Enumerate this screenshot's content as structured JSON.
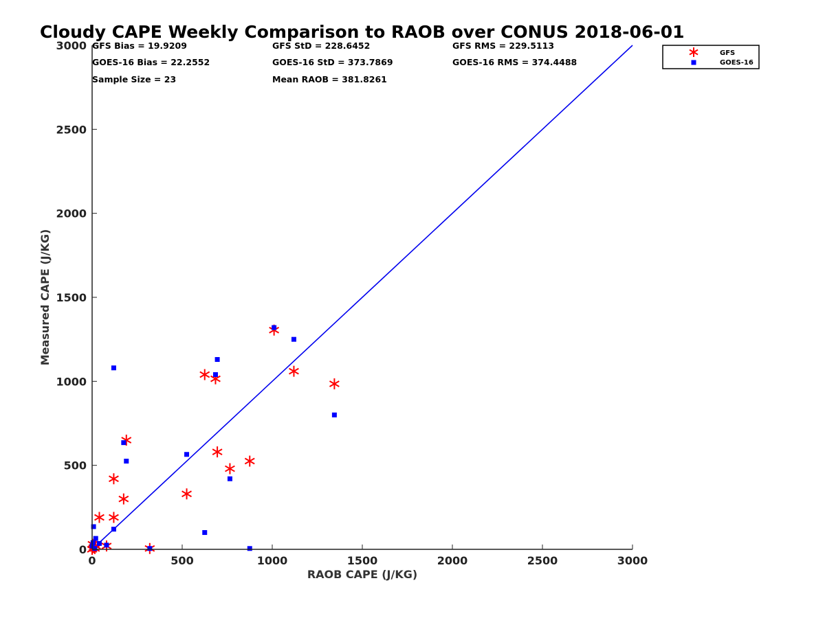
{
  "colors": {
    "gfs": "#ff0000",
    "goes": "#0000ff",
    "one_to_one": "#0000ee",
    "axis": "#222222"
  },
  "stats": {
    "gfs_bias": "GFS Bias = 19.9209",
    "gfs_std": "GFS StD = 228.6452",
    "gfs_rms": "GFS RMS = 229.5113",
    "goes_bias": "GOES-16 Bias = 22.2552",
    "goes_std": "GOES-16 StD = 373.7869",
    "goes_rms": "GOES-16 RMS = 374.4488",
    "sample_size": "Sample Size = 23",
    "mean_raob": "Mean RAOB = 381.8261"
  },
  "chart_data": {
    "type": "scatter",
    "title": "Cloudy CAPE Weekly Comparison to RAOB over CONUS 2018-06-01",
    "xlabel": "RAOB CAPE (J/KG)",
    "ylabel": "Measured CAPE (J/KG)",
    "xlim": [
      0,
      3000
    ],
    "ylim": [
      0,
      3000
    ],
    "xticks": [
      "0",
      "500",
      "1000",
      "1500",
      "2000",
      "2500",
      "3000"
    ],
    "yticks": [
      "0",
      "500",
      "1000",
      "1500",
      "2000",
      "2500",
      "3000"
    ],
    "grid": false,
    "legend_position": "top-right, outside plot",
    "reference_line": "y = x",
    "series": [
      {
        "name": "GFS",
        "marker": "asterisk",
        "color": "#ff0000",
        "points": [
          [
            0,
            0
          ],
          [
            3,
            30
          ],
          [
            8,
            10
          ],
          [
            15,
            5
          ],
          [
            20,
            20
          ],
          [
            40,
            190
          ],
          [
            80,
            20
          ],
          [
            120,
            190
          ],
          [
            120,
            420
          ],
          [
            175,
            300
          ],
          [
            190,
            650
          ],
          [
            320,
            5
          ],
          [
            525,
            330
          ],
          [
            625,
            1040
          ],
          [
            685,
            1015
          ],
          [
            695,
            580
          ],
          [
            765,
            480
          ],
          [
            875,
            525
          ],
          [
            1010,
            1305
          ],
          [
            1120,
            1060
          ],
          [
            1345,
            985
          ]
        ]
      },
      {
        "name": "GOES-16",
        "marker": "square",
        "color": "#0000ff",
        "points": [
          [
            0,
            20
          ],
          [
            5,
            40
          ],
          [
            8,
            135
          ],
          [
            15,
            5
          ],
          [
            20,
            65
          ],
          [
            40,
            35
          ],
          [
            80,
            25
          ],
          [
            120,
            120
          ],
          [
            120,
            1080
          ],
          [
            175,
            635
          ],
          [
            190,
            525
          ],
          [
            320,
            5
          ],
          [
            525,
            565
          ],
          [
            625,
            100
          ],
          [
            685,
            1040
          ],
          [
            695,
            1130
          ],
          [
            765,
            420
          ],
          [
            875,
            5
          ],
          [
            1010,
            1320
          ],
          [
            1120,
            1250
          ],
          [
            1345,
            800
          ]
        ]
      }
    ]
  }
}
